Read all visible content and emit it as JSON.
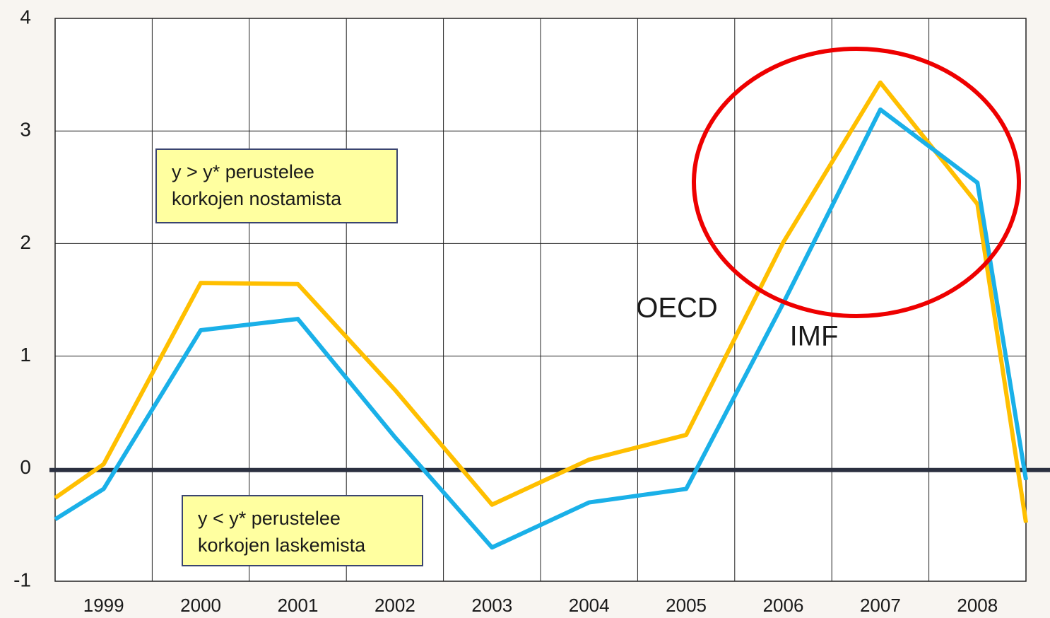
{
  "chart_data": {
    "type": "line",
    "x": [
      1998.5,
      1999,
      2000,
      2001,
      2002,
      2003,
      2004,
      2005,
      2006,
      2007,
      2008,
      2008.5
    ],
    "series": [
      {
        "name": "OECD",
        "color": "#ffbf00",
        "values": [
          -0.26,
          0.04,
          1.65,
          1.64,
          0.7,
          -0.32,
          0.08,
          0.3,
          2.01,
          3.43,
          2.35,
          -0.48
        ]
      },
      {
        "name": "IMF",
        "color": "#1ab0e8",
        "values": [
          -0.45,
          -0.18,
          1.23,
          1.33,
          0.28,
          -0.7,
          -0.3,
          -0.18,
          1.47,
          3.19,
          2.54,
          -0.1
        ]
      }
    ],
    "xlim": [
      1998.5,
      2008.5
    ],
    "xticks": [
      1999,
      2000,
      2001,
      2002,
      2003,
      2004,
      2005,
      2006,
      2007,
      2008
    ],
    "ylim": [
      -1,
      4
    ],
    "yticks": [
      -1,
      0,
      1,
      2,
      3,
      4
    ],
    "grid": true,
    "annotations": [
      {
        "lines": [
          "y > y* perustelee",
          "korkojen nostamista"
        ]
      },
      {
        "lines": [
          "y < y* perustelee",
          "korkojen laskemista"
        ]
      }
    ]
  }
}
